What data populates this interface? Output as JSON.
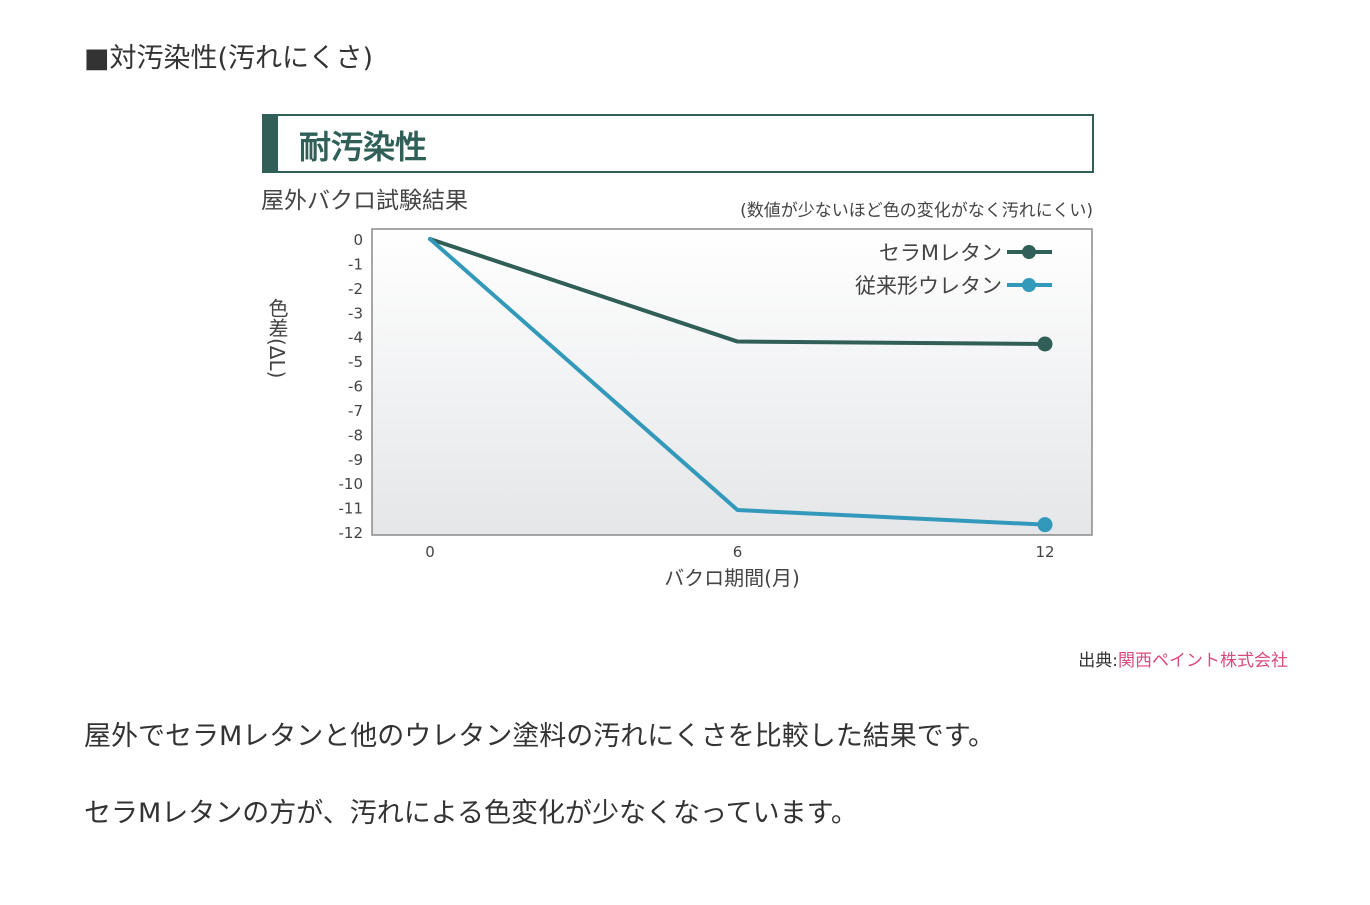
{
  "page": {
    "section_heading": "■対汚染性(汚れにくさ)",
    "source_label": "出典:",
    "source_link": "関西ペイント株式会社",
    "paragraphs": [
      "屋外でセラMレタンと他のウレタン塗料の汚れにくさを比較した結果です。",
      "セラMレタンの方が、汚れによる色変化が少なくなっています。"
    ]
  },
  "chart_data": {
    "type": "line",
    "title": "耐汚染性",
    "subtitle": "屋外バクロ試験結果",
    "note": "(数値が少ないほど色の変化がなく汚れにくい)",
    "xlabel": "バクロ期間(月)",
    "ylabel": "色差(ΔL)",
    "x": [
      0,
      6,
      12
    ],
    "x_tick_labels": [
      "0",
      "6",
      "12"
    ],
    "xlim": [
      0,
      12
    ],
    "ylim": [
      -12,
      0
    ],
    "y_ticks": [
      0,
      -1,
      -2,
      -3,
      -4,
      -5,
      -6,
      -7,
      -8,
      -9,
      -10,
      -11,
      -12
    ],
    "series": [
      {
        "name": "セラMレタン",
        "values": [
          0,
          -4.2,
          -4.3
        ],
        "color": "#2f5f57"
      },
      {
        "name": "従来形ウレタン",
        "values": [
          0,
          -11.1,
          -11.7
        ],
        "color": "#3399bb"
      }
    ],
    "grid": false,
    "legend": "top-right",
    "colors": {
      "title_bar": "#2f5f57",
      "plot_bg_top": "#ffffff",
      "plot_bg_bottom": "#e4e6e8"
    }
  }
}
